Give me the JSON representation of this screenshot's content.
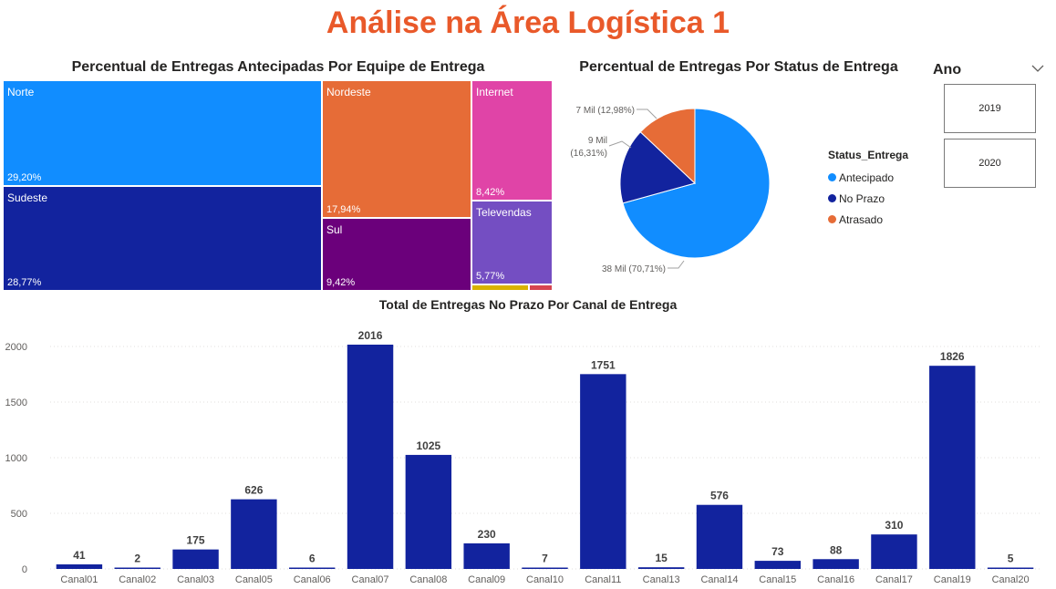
{
  "page_title": "Análise na Área Logística 1",
  "colors": {
    "title": "#e9592a",
    "bar": "#12239e"
  },
  "treemap": {
    "title": "Percentual de Entregas Antecipadas Por Equipe de Entrega",
    "tiles": [
      {
        "name": "Norte",
        "percent": "29,20%",
        "color": "#118dff"
      },
      {
        "name": "Sudeste",
        "percent": "28,77%",
        "color": "#12239e"
      },
      {
        "name": "Nordeste",
        "percent": "17,94%",
        "color": "#e66c37"
      },
      {
        "name": "Sul",
        "percent": "9,42%",
        "color": "#6b007b"
      },
      {
        "name": "Internet",
        "percent": "8,42%",
        "color": "#e044a7"
      },
      {
        "name": "Televendas",
        "percent": "5,77%",
        "color": "#744ec2"
      }
    ]
  },
  "pie": {
    "title": "Percentual de Entregas Por Status de Entrega",
    "legend_title": "Status_Entrega",
    "slices": [
      {
        "name": "Antecipado",
        "value": 70.71,
        "label": "38 Mil (70,71%)",
        "color": "#118dff"
      },
      {
        "name": "No Prazo",
        "value": 16.31,
        "label_line1": "9 Mil",
        "label_line2": "(16,31%)",
        "color": "#12239e"
      },
      {
        "name": "Atrasado",
        "value": 12.98,
        "label": "7 Mil (12,98%)",
        "color": "#e66c37"
      }
    ]
  },
  "slicer": {
    "title": "Ano",
    "options": [
      "2019",
      "2020"
    ]
  },
  "chart_data": {
    "type": "bar",
    "title": "Total de Entregas No Prazo Por Canal de Entrega",
    "categories": [
      "Canal01",
      "Canal02",
      "Canal03",
      "Canal05",
      "Canal06",
      "Canal07",
      "Canal08",
      "Canal09",
      "Canal10",
      "Canal11",
      "Canal13",
      "Canal14",
      "Canal15",
      "Canal16",
      "Canal17",
      "Canal19",
      "Canal20"
    ],
    "values": [
      41,
      2,
      175,
      626,
      6,
      2016,
      1025,
      230,
      7,
      1751,
      15,
      576,
      73,
      88,
      310,
      1826,
      5
    ],
    "yticks": [
      0,
      500,
      1000,
      1500,
      2000
    ],
    "ylim": [
      0,
      2100
    ],
    "xlabel": "",
    "ylabel": "",
    "grid": true
  }
}
